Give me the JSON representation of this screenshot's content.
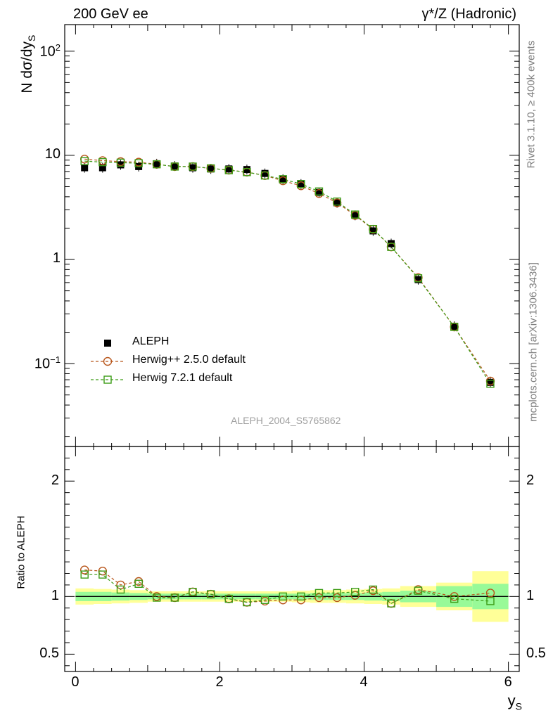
{
  "header": {
    "left_title": "200 GeV ee",
    "right_title": "γ*/Z (Hadronic)"
  },
  "side": {
    "rivet_label": "Rivet 3.1.10, ≥ 400k events",
    "mcplots_label": "mcplots.cern.ch [arXiv:1306.3436]"
  },
  "watermark": "ALEPH_2004_S5765862",
  "colors": {
    "data": "#000000",
    "herwigpp": "#b8561b",
    "herwig7": "#3c9c16",
    "band_inner": "#98fa98",
    "band_outer": "#ffff98",
    "side_text": "#808080",
    "watermark": "#a0a0a0"
  },
  "chart_data": [
    {
      "type": "scatter",
      "panel": "main",
      "ylabel_main": "N dσ/dy",
      "ylabel_sub": "S",
      "yscale": "log",
      "ylim": [
        0.016,
        180
      ],
      "xlim": [
        -0.15,
        6.15
      ],
      "yticks": [
        {
          "value": 0.1,
          "base": "10",
          "exp": "−1"
        },
        {
          "value": 1,
          "base": "1",
          "exp": ""
        },
        {
          "value": 10,
          "base": "10",
          "exp": ""
        },
        {
          "value": 100,
          "base": "10",
          "exp": "2"
        }
      ],
      "legend": {
        "position": "bottom-left",
        "entries": [
          "ALEPH",
          "Herwig++ 2.5.0 default",
          "Herwig 7.2.1 default"
        ]
      },
      "x": [
        0.125,
        0.375,
        0.625,
        0.875,
        1.125,
        1.375,
        1.625,
        1.875,
        2.125,
        2.375,
        2.625,
        2.875,
        3.125,
        3.375,
        3.625,
        3.875,
        4.125,
        4.375,
        4.75,
        5.25,
        5.75
      ],
      "series": [
        {
          "name": "ALEPH",
          "marker": "filled-square",
          "values": [
            7.6,
            7.6,
            8.1,
            7.8,
            8.3,
            7.9,
            7.6,
            7.4,
            7.4,
            7.3,
            6.7,
            5.9,
            5.3,
            4.4,
            3.5,
            2.65,
            1.88,
            1.42,
            0.64,
            0.228,
            0.066
          ]
        },
        {
          "name": "Herwig++ 2.5.0 default",
          "marker": "open-circle",
          "values": [
            9.2,
            8.9,
            8.7,
            8.6,
            8.2,
            7.8,
            7.8,
            7.5,
            7.2,
            6.9,
            6.4,
            5.7,
            5.1,
            4.3,
            3.5,
            2.65,
            1.95,
            1.32,
            0.67,
            0.225,
            0.068
          ]
        },
        {
          "name": "Herwig 7.2.1 default",
          "marker": "open-square",
          "values": [
            8.8,
            8.6,
            8.5,
            8.4,
            8.2,
            7.8,
            7.8,
            7.5,
            7.2,
            6.9,
            6.4,
            5.9,
            5.3,
            4.5,
            3.6,
            2.7,
            1.96,
            1.32,
            0.66,
            0.225,
            0.064
          ]
        }
      ]
    },
    {
      "type": "scatter",
      "panel": "ratio",
      "ylabel": "Ratio to ALEPH",
      "xlabel_main": "y",
      "xlabel_sub": "S",
      "ylim": [
        0.35,
        2.3
      ],
      "xlim": [
        -0.15,
        6.15
      ],
      "yticks": [
        {
          "value": 0.5,
          "label": "0.5"
        },
        {
          "value": 1,
          "label": "1"
        },
        {
          "value": 2,
          "label": "2"
        }
      ],
      "xticks": [
        {
          "value": 0,
          "label": "0"
        },
        {
          "value": 2,
          "label": "2"
        },
        {
          "value": 4,
          "label": "4"
        },
        {
          "value": 6,
          "label": "6"
        }
      ],
      "bins": [
        [
          0,
          0.25
        ],
        [
          0.25,
          0.5
        ],
        [
          0.5,
          0.75
        ],
        [
          0.75,
          1
        ],
        [
          1,
          1.25
        ],
        [
          1.25,
          1.5
        ],
        [
          1.5,
          1.75
        ],
        [
          1.75,
          2
        ],
        [
          2,
          2.25
        ],
        [
          2.25,
          2.5
        ],
        [
          2.5,
          2.75
        ],
        [
          2.75,
          3
        ],
        [
          3,
          3.25
        ],
        [
          3.25,
          3.5
        ],
        [
          3.5,
          3.75
        ],
        [
          3.75,
          4
        ],
        [
          4,
          4.25
        ],
        [
          4.25,
          4.5
        ],
        [
          4.5,
          5
        ],
        [
          5,
          5.5
        ],
        [
          5.5,
          6
        ]
      ],
      "band_inner": [
        0.04,
        0.04,
        0.035,
        0.03,
        0.025,
        0.025,
        0.025,
        0.025,
        0.025,
        0.025,
        0.025,
        0.025,
        0.025,
        0.03,
        0.03,
        0.03,
        0.035,
        0.04,
        0.05,
        0.09,
        0.11
      ],
      "band_outer": [
        0.07,
        0.065,
        0.06,
        0.055,
        0.045,
        0.045,
        0.045,
        0.045,
        0.045,
        0.045,
        0.045,
        0.045,
        0.05,
        0.055,
        0.055,
        0.06,
        0.065,
        0.07,
        0.09,
        0.12,
        0.22
      ],
      "x": [
        0.125,
        0.375,
        0.625,
        0.875,
        1.125,
        1.375,
        1.625,
        1.875,
        2.125,
        2.375,
        2.625,
        2.875,
        3.125,
        3.375,
        3.625,
        3.875,
        4.125,
        4.375,
        4.75,
        5.25,
        5.75
      ],
      "series": [
        {
          "name": "Herwig++ 2.5.0 default",
          "marker": "open-circle",
          "values": [
            1.23,
            1.22,
            1.1,
            1.13,
            1.0,
            0.99,
            1.04,
            1.02,
            0.98,
            0.95,
            0.96,
            0.97,
            0.97,
            0.99,
            0.99,
            1.01,
            1.05,
            0.94,
            1.06,
            1.0,
            1.03
          ]
        },
        {
          "name": "Herwig 7.2.1 default",
          "marker": "open-square",
          "values": [
            1.19,
            1.19,
            1.06,
            1.11,
            0.99,
            0.99,
            1.04,
            1.02,
            0.98,
            0.95,
            0.97,
            1.0,
            1.0,
            1.03,
            1.03,
            1.04,
            1.06,
            0.94,
            1.05,
            0.98,
            0.96
          ]
        }
      ]
    }
  ]
}
